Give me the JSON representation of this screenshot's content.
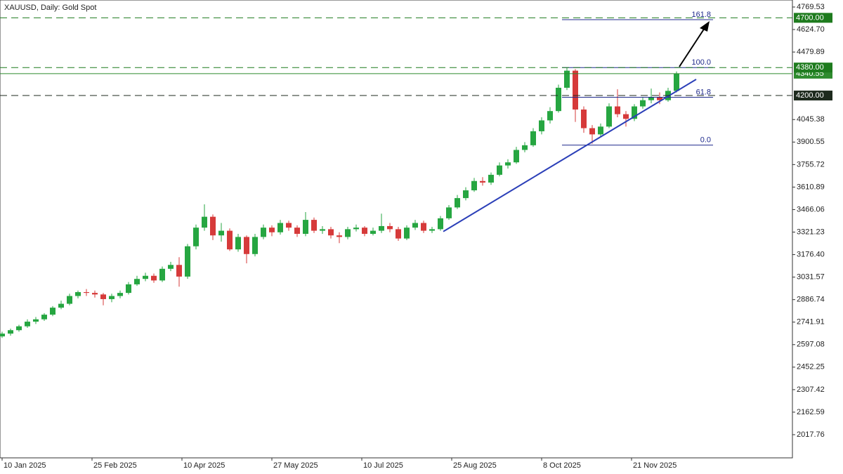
{
  "chart_data": {
    "type": "candlestick",
    "title": "XAUUSD, Daily:  Gold Spot",
    "x": [
      0,
      3,
      6,
      9,
      12,
      15,
      18,
      21,
      24,
      27,
      30,
      33,
      36,
      39,
      42,
      45,
      48,
      51,
      54,
      57,
      60,
      63,
      66,
      69,
      72,
      75,
      78,
      81,
      84,
      87,
      90,
      93,
      96,
      99,
      102,
      105,
      108,
      111,
      114,
      117,
      120,
      123,
      126,
      129,
      132,
      135,
      138,
      141,
      144,
      147,
      150,
      153,
      156,
      159,
      162,
      165,
      168,
      171,
      174,
      177,
      180,
      183,
      186,
      189,
      192,
      195,
      198,
      201,
      204,
      207,
      210,
      213,
      216,
      219,
      222,
      225,
      228,
      231,
      234,
      237,
      240
    ],
    "open": [
      2650,
      2668,
      2690,
      2715,
      2745,
      2760,
      2790,
      2835,
      2860,
      2910,
      2935,
      2930,
      2920,
      2890,
      2910,
      2930,
      2985,
      3020,
      3040,
      3010,
      3085,
      3110,
      3035,
      3230,
      3350,
      3420,
      3300,
      3330,
      3210,
      3290,
      3180,
      3290,
      3350,
      3320,
      3380,
      3350,
      3310,
      3400,
      3330,
      3340,
      3300,
      3290,
      3340,
      3350,
      3310,
      3330,
      3360,
      3340,
      3280,
      3350,
      3380,
      3330,
      3340,
      3410,
      3480,
      3540,
      3590,
      3650,
      3640,
      3690,
      3750,
      3770,
      3850,
      3880,
      3970,
      4040,
      4100,
      4250,
      4360,
      4110,
      3990,
      3950,
      4000,
      4130,
      4080,
      4050,
      4130,
      4170,
      4190,
      4170,
      4230
    ],
    "high": [
      2680,
      2700,
      2725,
      2760,
      2775,
      2800,
      2845,
      2880,
      2925,
      2945,
      2955,
      2945,
      2930,
      2925,
      2945,
      3000,
      3040,
      3060,
      3055,
      3100,
      3130,
      3160,
      3245,
      3370,
      3500,
      3435,
      3380,
      3345,
      3310,
      3300,
      3310,
      3370,
      3365,
      3400,
      3395,
      3365,
      3450,
      3415,
      3360,
      3355,
      3320,
      3355,
      3370,
      3360,
      3350,
      3440,
      3380,
      3355,
      3365,
      3400,
      3395,
      3355,
      3425,
      3495,
      3560,
      3610,
      3670,
      3675,
      3705,
      3770,
      3790,
      3870,
      3900,
      3990,
      4060,
      4125,
      4270,
      4381,
      4370,
      4130,
      4010,
      4020,
      4150,
      4240,
      4100,
      4145,
      4190,
      4245,
      4220,
      4250,
      4355
    ],
    "low": [
      2640,
      2655,
      2680,
      2705,
      2730,
      2750,
      2780,
      2825,
      2850,
      2895,
      2910,
      2900,
      2850,
      2870,
      2895,
      2920,
      2975,
      3005,
      2995,
      3000,
      3070,
      2970,
      3020,
      3210,
      3330,
      3270,
      3260,
      3200,
      3195,
      3120,
      3165,
      3275,
      3295,
      3305,
      3330,
      3290,
      3295,
      3315,
      3310,
      3280,
      3250,
      3275,
      3325,
      3295,
      3300,
      3315,
      3320,
      3265,
      3270,
      3335,
      3315,
      3315,
      3330,
      3400,
      3470,
      3525,
      3580,
      3620,
      3625,
      3680,
      3730,
      3760,
      3835,
      3870,
      3950,
      4020,
      4090,
      4235,
      4030,
      3960,
      3890,
      3930,
      3990,
      4060,
      4000,
      4035,
      4115,
      4150,
      4145,
      4160,
      4220
    ],
    "close": [
      2668,
      2690,
      2715,
      2745,
      2760,
      2790,
      2835,
      2860,
      2910,
      2935,
      2930,
      2920,
      2890,
      2910,
      2930,
      2985,
      3020,
      3040,
      3010,
      3085,
      3110,
      3035,
      3230,
      3350,
      3420,
      3300,
      3330,
      3210,
      3290,
      3180,
      3290,
      3350,
      3320,
      3380,
      3350,
      3310,
      3400,
      3330,
      3340,
      3300,
      3290,
      3340,
      3350,
      3310,
      3330,
      3360,
      3340,
      3280,
      3350,
      3380,
      3330,
      3340,
      3410,
      3480,
      3540,
      3590,
      3650,
      3640,
      3690,
      3750,
      3770,
      3850,
      3880,
      3970,
      4040,
      4100,
      4250,
      4360,
      4110,
      3990,
      3950,
      4000,
      4130,
      4080,
      4050,
      4130,
      4170,
      4190,
      4170,
      4230,
      4340
    ],
    "up_color": "#26a641",
    "down_color": "#d63a3a",
    "xlim": [
      -0.75,
      281.25
    ],
    "xticks": [
      {
        "value": 0,
        "label": "10 Jan 2025"
      },
      {
        "value": 32,
        "label": "25 Feb 2025"
      },
      {
        "value": 64,
        "label": "10 Apr 2025"
      },
      {
        "value": 96,
        "label": "27 May 2025"
      },
      {
        "value": 128,
        "label": "10 Jul 2025"
      },
      {
        "value": 160,
        "label": "25 Aug 2025"
      },
      {
        "value": 192,
        "label": "8 Oct 2025"
      },
      {
        "value": 224,
        "label": "21 Nov 2025"
      }
    ],
    "ylim": [
      1868.6,
      4814.7
    ],
    "yticks": [
      4769.53,
      {
        "value": 4624.7,
        "label": "4624.70"
      },
      4479.89,
      4045.38,
      3900.55,
      3755.72,
      3610.89,
      3466.06,
      3321.23,
      {
        "value": 3176.4,
        "label": "3176.40"
      },
      3031.57,
      2886.74,
      2741.91,
      2597.08,
      2452.25,
      2307.42,
      2162.59,
      2017.76
    ],
    "levels": [
      {
        "value": 4700,
        "label": "4700.00",
        "color": "#1e7b1e",
        "style": "dashed"
      },
      {
        "value": 4340.55,
        "label": "4340.55",
        "color": "#2e8b2e",
        "style": "solid"
      },
      {
        "value": 4380,
        "label": "4380.00",
        "color": "#1e7b1e",
        "style": "dashed"
      },
      {
        "value": 4200,
        "label": "4200.00",
        "color": "#1e2a1e",
        "style": "dashed"
      }
    ],
    "fib_levels": [
      {
        "value": 4688,
        "label": "161.8"
      },
      {
        "value": 4380,
        "label": "100.0"
      },
      {
        "value": 4189,
        "label": "61.8"
      },
      {
        "value": 3881,
        "label": "0.0"
      }
    ],
    "fib_color": "#1f2a8c",
    "trendline": {
      "x": [
        157,
        247
      ],
      "values": [
        3325,
        4304
      ],
      "color": "#2b3fb8"
    }
  }
}
